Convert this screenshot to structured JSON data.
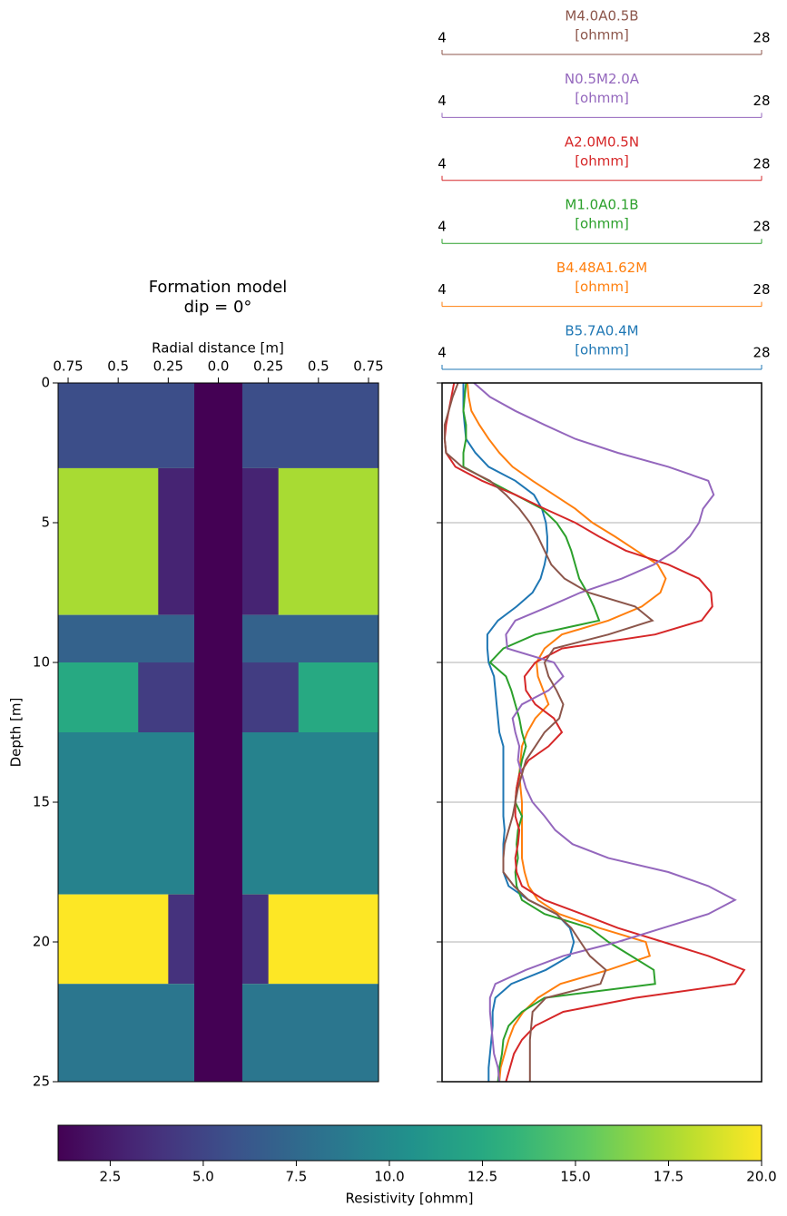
{
  "chart_data": [
    {
      "type": "model",
      "title": "Formation model",
      "subtitle": "dip = 0°",
      "xlabel": "Radial distance [m]",
      "ylabel": "Depth [m]",
      "xlim": [
        -0.8,
        0.8
      ],
      "xticks": [
        {
          "value": -0.75,
          "label": "0.75"
        },
        {
          "value": -0.5,
          "label": "0.5"
        },
        {
          "value": -0.25,
          "label": "0.25"
        },
        {
          "value": 0,
          "label": "0.0"
        },
        0.25,
        0.5,
        0.75
      ],
      "ylim": [
        0,
        25
      ],
      "yticks": [
        0,
        5,
        10,
        15,
        20,
        25
      ],
      "colormap": "viridis",
      "borehole": {
        "radius": 0.12,
        "resistivity": 1.1
      },
      "layers": [
        {
          "top": 0,
          "bottom": 3.05,
          "resistivity": 5.6
        },
        {
          "top": 3.05,
          "bottom": 8.3,
          "resistivity": 17.5,
          "invaded_radius": 0.3,
          "invaded_resistivity": 3.0
        },
        {
          "top": 8.3,
          "bottom": 10,
          "resistivity": 7
        },
        {
          "top": 10,
          "bottom": 12.5,
          "resistivity": 12.5,
          "invaded_radius": 0.4,
          "invaded_resistivity": 4.5
        },
        {
          "top": 12.5,
          "bottom": 18.3,
          "resistivity": 9.4
        },
        {
          "top": 18.3,
          "bottom": 21.5,
          "resistivity": 20,
          "invaded_radius": 0.25,
          "invaded_resistivity": 3.8
        },
        {
          "top": 21.5,
          "bottom": 25,
          "resistivity": 8.5
        }
      ],
      "colorbar": {
        "label": "Resistivity [ohmm]",
        "clim": [
          1.1,
          20
        ],
        "ticks": [
          2.5,
          {
            "value": 5,
            "label": "5.0"
          },
          7.5,
          {
            "value": 10,
            "label": "10.0"
          },
          12.5,
          {
            "value": 15,
            "label": "15.0"
          },
          17.5,
          {
            "value": 20,
            "label": "20.0"
          }
        ]
      }
    },
    {
      "type": "line",
      "ylim": [
        0,
        25
      ],
      "yticks": [
        0,
        5,
        10,
        15,
        20,
        25
      ],
      "grid": true,
      "depth": [
        0,
        0.5,
        1,
        1.5,
        2,
        2.5,
        3,
        3.5,
        4,
        4.5,
        5,
        5.5,
        6,
        6.5,
        7,
        7.5,
        8,
        8.5,
        9,
        9.5,
        10,
        10.5,
        11,
        11.5,
        12,
        12.5,
        13,
        13.5,
        14,
        14.5,
        15,
        15.5,
        16,
        16.5,
        17,
        17.5,
        18,
        18.5,
        19,
        19.5,
        20,
        20.5,
        21,
        21.5,
        22,
        22.5,
        23,
        23.5,
        24,
        24.5,
        25
      ],
      "series": [
        {
          "name": "B5.7A0.4M",
          "unit": "[ohmm]",
          "color": "#1f77b4",
          "xlim": [
            4,
            28
          ],
          "xticks": [
            4,
            28
          ],
          "values": [
            5.6,
            5.6,
            5.6,
            5.7,
            5.8,
            6.5,
            7.5,
            9.5,
            10.9,
            11.5,
            11.8,
            11.9,
            11.9,
            11.7,
            11.4,
            10.8,
            9.6,
            8.2,
            7.4,
            7.4,
            7.5,
            7.9,
            8.0,
            8.1,
            8.2,
            8.3,
            8.6,
            8.6,
            8.6,
            8.6,
            8.6,
            8.6,
            8.7,
            8.6,
            8.6,
            8.6,
            9.0,
            10.5,
            12.6,
            13.6,
            13.9,
            13.6,
            11.8,
            9.2,
            8.0,
            7.8,
            7.8,
            7.7,
            7.6,
            7.5,
            7.5
          ]
        },
        {
          "name": "B4.48A1.62M",
          "unit": "[ohmm]",
          "color": "#ff7f0e",
          "xlim": [
            4,
            28
          ],
          "xticks": [
            4,
            28
          ],
          "values": [
            5.9,
            6.0,
            6.2,
            6.8,
            7.5,
            8.3,
            9.3,
            10.8,
            12.4,
            14.0,
            15.3,
            17.0,
            18.6,
            20.2,
            20.8,
            20.4,
            19.0,
            16.5,
            13.0,
            11.7,
            11.1,
            11.2,
            11.6,
            12.0,
            11.0,
            10.4,
            10.0,
            9.9,
            9.8,
            9.9,
            10.0,
            10.0,
            10.0,
            10.0,
            10.0,
            10.2,
            10.5,
            11.2,
            12.8,
            15.8,
            19.3,
            19.6,
            16.5,
            12.9,
            11.2,
            10.1,
            9.4,
            9.0,
            8.7,
            8.4,
            8.3
          ]
        },
        {
          "name": "M1.0A0.1B",
          "unit": "[ohmm]",
          "color": "#2ca02c",
          "xlim": [
            4,
            28
          ],
          "xticks": [
            4,
            28
          ],
          "values": [
            5.8,
            5.7,
            5.6,
            5.8,
            5.8,
            5.6,
            5.6,
            7.5,
            9.5,
            11.5,
            12.6,
            13.3,
            13.7,
            14.0,
            14.3,
            14.9,
            15.4,
            15.8,
            11.0,
            8.6,
            7.6,
            8.8,
            9.2,
            9.5,
            9.8,
            10.0,
            10.3,
            10.0,
            9.8,
            9.6,
            9.5,
            10.0,
            9.7,
            9.6,
            9.7,
            9.5,
            9.6,
            10.0,
            11.7,
            15.1,
            16.5,
            18.2,
            19.9,
            20.0,
            11.7,
            10.0,
            9.0,
            8.6,
            8.5,
            8.3,
            8.2
          ]
        },
        {
          "name": "A2.0M0.5N",
          "unit": "[ohmm]",
          "color": "#d62728",
          "xlim": [
            4,
            28
          ],
          "xticks": [
            4,
            28
          ],
          "values": [
            4.9,
            4.7,
            4.5,
            4.3,
            4.2,
            4.3,
            5.0,
            7.0,
            9.5,
            11.7,
            14.0,
            15.8,
            17.8,
            21.0,
            23.3,
            24.2,
            24.3,
            23.5,
            20.0,
            13.0,
            11.0,
            10.2,
            10.3,
            11.0,
            12.4,
            13.0,
            12.0,
            10.5,
            9.8,
            9.6,
            9.5,
            9.5,
            9.8,
            9.7,
            9.5,
            9.6,
            10.0,
            11.7,
            14.5,
            17.2,
            20.6,
            24.0,
            26.7,
            26.0,
            18.5,
            13.1,
            11.0,
            10.0,
            9.4,
            9.1,
            8.8
          ]
        },
        {
          "name": "N0.5M2.0A",
          "unit": "[ohmm]",
          "color": "#9467bd",
          "xlim": [
            4,
            28
          ],
          "xticks": [
            4,
            28
          ],
          "values": [
            6.4,
            7.6,
            9.5,
            11.7,
            14.0,
            17.2,
            21.0,
            24.0,
            24.4,
            23.6,
            23.3,
            22.6,
            21.5,
            19.9,
            17.5,
            14.4,
            12.0,
            9.5,
            8.8,
            8.9,
            12.4,
            13.1,
            12.0,
            10.0,
            9.3,
            9.5,
            9.8,
            9.7,
            10.0,
            10.3,
            10.8,
            11.7,
            12.5,
            13.8,
            16.5,
            21.0,
            24.0,
            26.0,
            24.0,
            20.6,
            17.2,
            13.1,
            10.3,
            8.0,
            7.6,
            7.6,
            7.7,
            7.8,
            7.9,
            8.2,
            8.3
          ]
        },
        {
          "name": "M4.0A0.5B",
          "unit": "[ohmm]",
          "color": "#8c564b",
          "xlim": [
            4,
            28
          ],
          "xticks": [
            4,
            28
          ],
          "values": [
            5.2,
            4.8,
            4.5,
            4.2,
            4.2,
            4.3,
            5.5,
            7.6,
            8.8,
            9.8,
            10.6,
            11.2,
            11.7,
            12.2,
            13.2,
            15.0,
            18.5,
            19.8,
            16.5,
            12.4,
            11.7,
            12.0,
            12.6,
            13.1,
            12.8,
            11.7,
            11.0,
            10.3,
            10.0,
            9.7,
            9.5,
            9.3,
            9.0,
            8.7,
            8.6,
            8.6,
            9.4,
            10.5,
            12.6,
            13.7,
            14.4,
            15.1,
            16.3,
            15.9,
            11.8,
            10.8,
            10.7,
            10.6,
            10.6,
            10.6,
            10.6
          ]
        }
      ]
    }
  ]
}
